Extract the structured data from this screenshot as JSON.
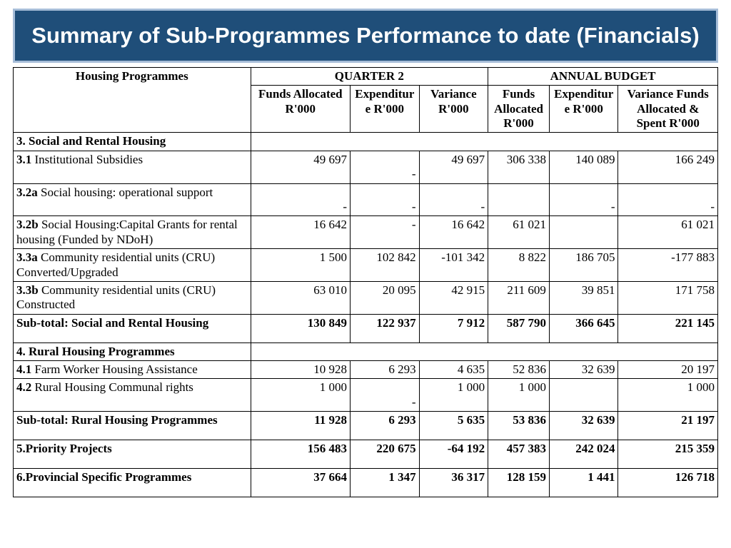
{
  "title": "Summary of Sub-Programmes Performance to date (Financials)",
  "table": {
    "headers": {
      "col0": "Housing Programmes",
      "group1": "QUARTER 2",
      "group2": "ANNUAL BUDGET",
      "q_funds": "Funds Allocated R'000",
      "q_exp": "Expenditure R'000",
      "q_var": "Variance R'000",
      "a_funds": "Funds Allocated R'000",
      "a_exp": "Expenditure R'000",
      "a_var": "Variance Funds Allocated & Spent R'000"
    },
    "rows": [
      {
        "type": "section",
        "code": "3.",
        "label": "Social and Rental Housing"
      },
      {
        "type": "data",
        "code": "3.1",
        "label": "Institutional Subsidies",
        "q_funds": "49 697",
        "q_exp": "-",
        "q_var": "49 697",
        "a_funds": "306 338",
        "a_exp": "140 089",
        "a_var": "166 249",
        "tall": true
      },
      {
        "type": "data",
        "code": "3.2a",
        "label": "Social housing: operational support",
        "q_funds": "-",
        "q_exp": "-",
        "q_var": "-",
        "a_funds": "",
        "a_exp": "-",
        "a_var": "-",
        "tall": true
      },
      {
        "type": "data",
        "code": "3.2b",
        "label": "Social Housing:Capital Grants for rental housing (Funded by NDoH)",
        "q_funds": "16 642",
        "q_exp": "-",
        "q_var": "16 642",
        "a_funds": "61 021",
        "a_exp": "",
        "a_var": "61 021"
      },
      {
        "type": "data",
        "code": "3.3a",
        "label": "Community residential units (CRU) Converted/Upgraded",
        "q_funds": "1 500",
        "q_exp": "102 842",
        "q_var": "-101 342",
        "a_funds": "8 822",
        "a_exp": "186 705",
        "a_var": "-177 883"
      },
      {
        "type": "data",
        "code": "3.3b",
        "label": "Community residential units (CRU) Constructed",
        "q_funds": "63 010",
        "q_exp": "20 095",
        "q_var": "42 915",
        "a_funds": "211 609",
        "a_exp": "39 851",
        "a_var": "171 758"
      },
      {
        "type": "subtotal",
        "label": "Sub-total: Social and Rental Housing",
        "q_funds": "130 849",
        "q_exp": "122 937",
        "q_var": "7 912",
        "a_funds": "587 790",
        "a_exp": "366 645",
        "a_var": "221 145",
        "tall": true
      },
      {
        "type": "section",
        "code": "4.",
        "label": "Rural Housing Programmes"
      },
      {
        "type": "data",
        "code": "4.1",
        "label": "Farm Worker Housing Assistance",
        "q_funds": "10 928",
        "q_exp": "6 293",
        "q_var": "4 635",
        "a_funds": "52 836",
        "a_exp": "32 639",
        "a_var": "20 197"
      },
      {
        "type": "data",
        "code": "4.2",
        "label": "Rural Housing Communal rights",
        "q_funds": "1 000",
        "q_exp": "-",
        "q_var": "1 000",
        "a_funds": "1 000",
        "a_exp": "",
        "a_var": "1 000",
        "tall": true
      },
      {
        "type": "subtotal",
        "label": "Sub-total: Rural Housing Programmes",
        "q_funds": "11 928",
        "q_exp": "6 293",
        "q_var": "5 635",
        "a_funds": "53 836",
        "a_exp": "32 639",
        "a_var": "21 197",
        "tall": true
      },
      {
        "type": "boldrow",
        "code": "5.",
        "label": "Priority Projects",
        "q_funds": "156 483",
        "q_exp": "220 675",
        "q_var": "-64 192",
        "a_funds": "457 383",
        "a_exp": "242 024",
        "a_var": "215 359",
        "tall": true
      },
      {
        "type": "boldrow",
        "code": "6.",
        "label": "Provincial Specific Programmes",
        "q_funds": "37 664",
        "q_exp": "1 347",
        "q_var": "36 317",
        "a_funds": "128 159",
        "a_exp": "1 441",
        "a_var": "126 718",
        "tall": true
      }
    ]
  },
  "style": {
    "banner_bg": "#1f4e79",
    "banner_border": "#a6bdd8",
    "banner_color": "#ffffff",
    "border_color": "#000000",
    "header_fontsize": 17,
    "body_fontsize": 17,
    "title_fontsize": 31,
    "col_widths_pct": [
      31,
      13,
      9,
      9,
      8,
      9,
      13
    ]
  }
}
